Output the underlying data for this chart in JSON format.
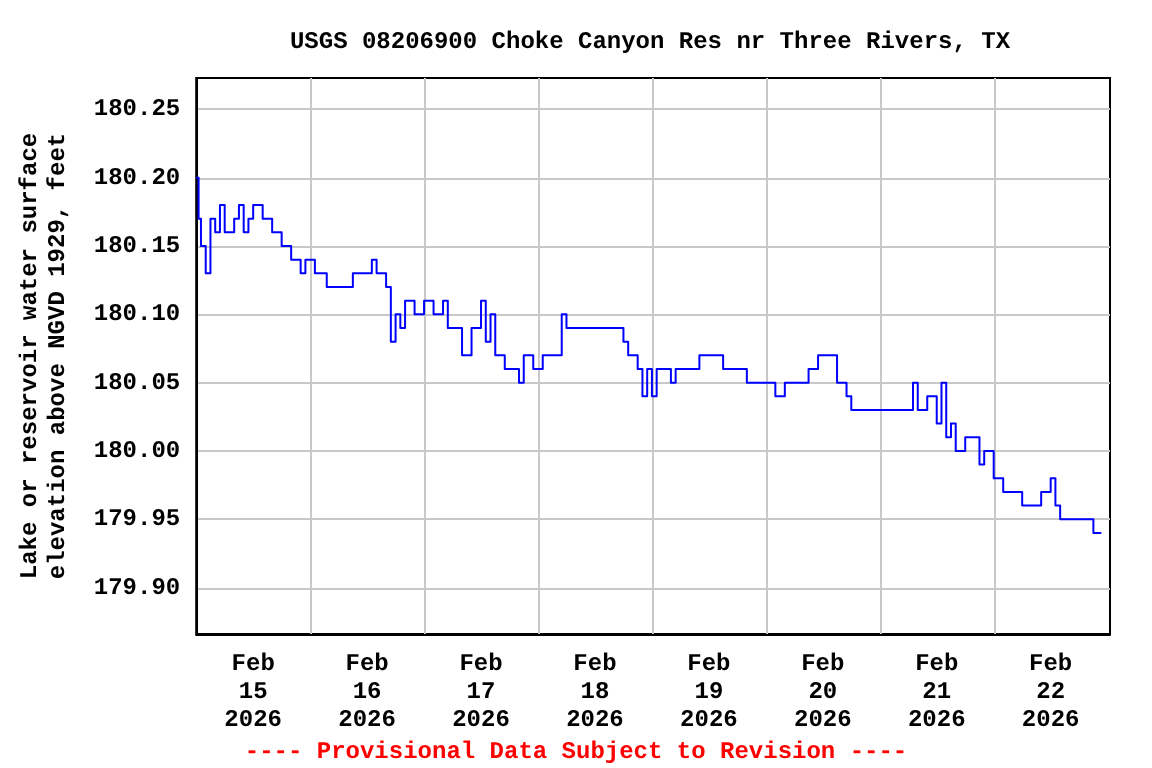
{
  "chart_data": {
    "type": "step",
    "title": "USGS 08206900 Choke Canyon Res nr Three Rivers, TX",
    "ylabel": "Lake or reservoir water surface\nelevation above NGVD 1929, feet",
    "annotations": [
      "---- Provisional Data Subject to Revision ----"
    ],
    "grid": true,
    "xlim": [
      "2026-02-15T00:00",
      "2026-02-23T00:30"
    ],
    "xticks": [
      {
        "value": "2026-02-15T12:00",
        "label": "Feb\n15\n2026"
      },
      {
        "value": "2026-02-16T00:00",
        "label": null
      },
      {
        "value": "2026-02-16T12:00",
        "label": "Feb\n16\n2026"
      },
      {
        "value": "2026-02-17T00:00",
        "label": null
      },
      {
        "value": "2026-02-17T12:00",
        "label": "Feb\n17\n2026"
      },
      {
        "value": "2026-02-18T00:00",
        "label": null
      },
      {
        "value": "2026-02-18T12:00",
        "label": "Feb\n18\n2026"
      },
      {
        "value": "2026-02-19T00:00",
        "label": null
      },
      {
        "value": "2026-02-19T12:00",
        "label": "Feb\n19\n2026"
      },
      {
        "value": "2026-02-20T00:00",
        "label": null
      },
      {
        "value": "2026-02-20T12:00",
        "label": "Feb\n20\n2026"
      },
      {
        "value": "2026-02-21T00:00",
        "label": null
      },
      {
        "value": "2026-02-21T12:00",
        "label": "Feb\n21\n2026"
      },
      {
        "value": "2026-02-22T00:00",
        "label": null
      },
      {
        "value": "2026-02-22T12:00",
        "label": "Feb\n22\n2026"
      }
    ],
    "ylim": [
      179.866,
      180.273
    ],
    "yticks": [
      {
        "value": 179.9,
        "label": "179.90"
      },
      {
        "value": 179.95,
        "label": "179.95"
      },
      {
        "value": 180.0,
        "label": "180.00"
      },
      {
        "value": 180.05,
        "label": "180.05"
      },
      {
        "value": 180.1,
        "label": "180.10"
      },
      {
        "value": 180.15,
        "label": "180.15"
      },
      {
        "value": 180.2,
        "label": "180.20"
      },
      {
        "value": 180.25,
        "label": "180.25"
      }
    ],
    "series": [
      {
        "color": "#0000ff",
        "x": [
          "2026-02-15T00:00",
          "2026-02-15T00:30",
          "2026-02-15T01:00",
          "2026-02-15T02:00",
          "2026-02-15T03:00",
          "2026-02-15T04:00",
          "2026-02-15T05:00",
          "2026-02-15T06:00",
          "2026-02-15T08:00",
          "2026-02-15T09:00",
          "2026-02-15T10:00",
          "2026-02-15T11:00",
          "2026-02-15T12:00",
          "2026-02-15T14:00",
          "2026-02-15T16:00",
          "2026-02-15T18:00",
          "2026-02-15T20:00",
          "2026-02-15T22:00",
          "2026-02-15T23:00",
          "2026-02-16T01:00",
          "2026-02-16T03:30",
          "2026-02-16T08:00",
          "2026-02-16T09:00",
          "2026-02-16T13:00",
          "2026-02-16T14:00",
          "2026-02-16T16:00",
          "2026-02-16T17:00",
          "2026-02-16T18:00",
          "2026-02-16T19:00",
          "2026-02-16T20:00",
          "2026-02-16T22:00",
          "2026-02-17T00:00",
          "2026-02-17T02:00",
          "2026-02-17T04:00",
          "2026-02-17T05:00",
          "2026-02-17T08:00",
          "2026-02-17T10:00",
          "2026-02-17T12:00",
          "2026-02-17T13:00",
          "2026-02-17T14:00",
          "2026-02-17T15:00",
          "2026-02-17T17:00",
          "2026-02-17T20:00",
          "2026-02-17T21:00",
          "2026-02-17T23:00",
          "2026-02-18T01:00",
          "2026-02-18T03:00",
          "2026-02-18T05:00",
          "2026-02-18T06:00",
          "2026-02-18T10:00",
          "2026-02-18T14:00",
          "2026-02-18T18:00",
          "2026-02-18T19:00",
          "2026-02-18T21:00",
          "2026-02-18T22:00",
          "2026-02-18T23:00",
          "2026-02-19T00:00",
          "2026-02-19T01:00",
          "2026-02-19T04:00",
          "2026-02-19T05:00",
          "2026-02-19T08:00",
          "2026-02-19T10:00",
          "2026-02-19T14:00",
          "2026-02-19T15:00",
          "2026-02-19T19:00",
          "2026-02-19T20:00",
          "2026-02-20T00:00",
          "2026-02-20T02:00",
          "2026-02-20T04:00",
          "2026-02-20T08:00",
          "2026-02-20T09:00",
          "2026-02-20T11:00",
          "2026-02-20T13:00",
          "2026-02-20T15:00",
          "2026-02-20T17:00",
          "2026-02-20T18:00",
          "2026-02-21T00:00",
          "2026-02-21T06:00",
          "2026-02-21T07:00",
          "2026-02-21T08:00",
          "2026-02-21T10:00",
          "2026-02-21T12:00",
          "2026-02-21T13:00",
          "2026-02-21T14:00",
          "2026-02-21T15:00",
          "2026-02-21T16:00",
          "2026-02-21T18:00",
          "2026-02-21T20:00",
          "2026-02-21T21:00",
          "2026-02-21T22:00",
          "2026-02-22T00:00",
          "2026-02-22T02:00",
          "2026-02-22T05:00",
          "2026-02-22T06:00",
          "2026-02-22T10:00",
          "2026-02-22T12:00",
          "2026-02-22T13:00",
          "2026-02-22T14:00",
          "2026-02-22T17:00",
          "2026-02-22T20:00",
          "2026-02-22T21:00",
          "2026-02-22T22:40"
        ],
        "values": [
          180.2,
          180.17,
          180.15,
          180.13,
          180.17,
          180.16,
          180.18,
          180.16,
          180.17,
          180.18,
          180.16,
          180.17,
          180.18,
          180.17,
          180.16,
          180.15,
          180.14,
          180.13,
          180.14,
          180.13,
          180.12,
          180.12,
          180.13,
          180.14,
          180.13,
          180.12,
          180.08,
          180.1,
          180.09,
          180.11,
          180.1,
          180.11,
          180.1,
          180.11,
          180.09,
          180.07,
          180.09,
          180.11,
          180.08,
          180.1,
          180.07,
          180.06,
          180.05,
          180.07,
          180.06,
          180.07,
          180.07,
          180.1,
          180.09,
          180.09,
          180.09,
          180.08,
          180.07,
          180.06,
          180.04,
          180.06,
          180.04,
          180.06,
          180.05,
          180.06,
          180.06,
          180.07,
          180.07,
          180.06,
          180.06,
          180.05,
          180.05,
          180.04,
          180.05,
          180.05,
          180.06,
          180.07,
          180.07,
          180.05,
          180.04,
          180.03,
          180.03,
          180.03,
          180.05,
          180.03,
          180.04,
          180.02,
          180.05,
          180.01,
          180.02,
          180.0,
          180.01,
          180.01,
          179.99,
          180.0,
          179.98,
          179.97,
          179.97,
          179.96,
          179.97,
          179.98,
          179.96,
          179.95,
          179.95,
          179.95,
          179.94,
          179.94
        ]
      }
    ]
  }
}
